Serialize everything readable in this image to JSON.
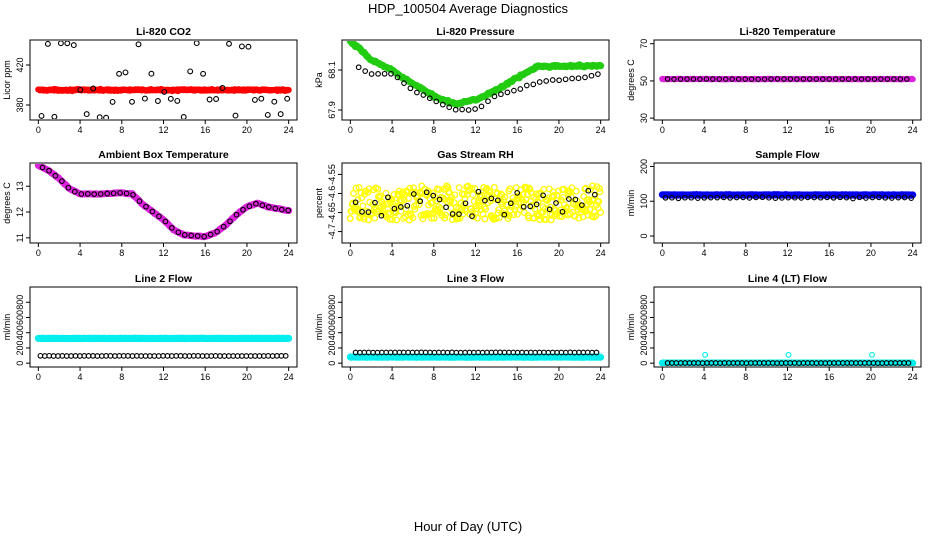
{
  "figure": {
    "title": "HDP_100504  Average Diagnostics",
    "xlabel": "Hour of Day (UTC)"
  },
  "chart_data": [
    {
      "id": "co2",
      "type": "scatter",
      "title": "Li-820 CO2",
      "ylabel": "Licor ppm",
      "xlim": [
        -0.8,
        24.8
      ],
      "xticks": [
        0,
        4,
        8,
        12,
        16,
        20,
        24
      ],
      "ylim": [
        365,
        445
      ],
      "yticks": [
        380,
        420
      ],
      "series": [
        {
          "name": "filled",
          "color": "#ff0000",
          "pattern": "const",
          "x_start": 0.0,
          "x_end": 24.0,
          "step": 0.06,
          "y": 395,
          "noise": 1.2,
          "size": 2.8
        },
        {
          "name": "open",
          "color": "#000000",
          "pattern": "scatter_levels",
          "x_start": 0.3,
          "x_end": 24.0,
          "step": 0.62,
          "levels": [
            369,
            385,
            395,
            412,
            440
          ],
          "weights": [
            3,
            4,
            2,
            1,
            2
          ],
          "size": 2.4,
          "open": true
        }
      ]
    },
    {
      "id": "pressure",
      "type": "scatter",
      "title": "Li-820 Pressure",
      "ylabel": "kPa",
      "xlim": [
        -0.8,
        24.8
      ],
      "xticks": [
        0,
        4,
        8,
        12,
        16,
        20,
        24
      ],
      "ylim": [
        67.85,
        68.25
      ],
      "yticks": [
        67.9,
        68.1
      ],
      "series": [
        {
          "name": "filled",
          "color": "#22cc11",
          "pattern": "curve",
          "x_start": 0.0,
          "x_end": 24.0,
          "step": 0.12,
          "noise": 0.008,
          "size": 3.2,
          "knots": [
            [
              0,
              68.24
            ],
            [
              1,
              68.2
            ],
            [
              2,
              68.15
            ],
            [
              4,
              68.1
            ],
            [
              6,
              68.03
            ],
            [
              8,
              67.97
            ],
            [
              10,
              67.93
            ],
            [
              12,
              67.95
            ],
            [
              14,
              68.0
            ],
            [
              16,
              68.06
            ],
            [
              18,
              68.12
            ],
            [
              20,
              68.12
            ],
            [
              22,
              68.12
            ],
            [
              24,
              68.12
            ]
          ]
        },
        {
          "name": "open",
          "color": "#000000",
          "pattern": "curve",
          "x_start": 0.8,
          "x_end": 24.0,
          "step": 0.62,
          "noise": 0.006,
          "size": 2.3,
          "open": true,
          "knots": [
            [
              0,
              68.13
            ],
            [
              2,
              68.08
            ],
            [
              4,
              68.08
            ],
            [
              6,
              68.0
            ],
            [
              8,
              67.95
            ],
            [
              10,
              67.9
            ],
            [
              12,
              67.9
            ],
            [
              14,
              67.97
            ],
            [
              16,
              68.0
            ],
            [
              18,
              68.04
            ],
            [
              20,
              68.05
            ],
            [
              22,
              68.06
            ],
            [
              24,
              68.08
            ]
          ]
        }
      ]
    },
    {
      "id": "temperature",
      "type": "scatter",
      "title": "Li-820 Temperature",
      "ylabel": "degrees C",
      "xlim": [
        -0.8,
        24.8
      ],
      "xticks": [
        0,
        4,
        8,
        12,
        16,
        20,
        24
      ],
      "ylim": [
        29,
        72
      ],
      "yticks": [
        30,
        50,
        70
      ],
      "series": [
        {
          "name": "filled",
          "color": "#dd22dd",
          "pattern": "const",
          "x_start": 0.0,
          "x_end": 24.0,
          "step": 0.08,
          "y": 51,
          "noise": 0.15,
          "size": 2.8
        },
        {
          "name": "open",
          "color": "#000000",
          "pattern": "const",
          "x_start": 0.5,
          "x_end": 24.0,
          "step": 0.62,
          "y": 51,
          "noise": 0.1,
          "size": 2.2,
          "open": true
        }
      ]
    },
    {
      "id": "ambient",
      "type": "scatter",
      "title": "Ambient Box Temperature",
      "ylabel": "degrees C",
      "xlim": [
        -0.8,
        24.8
      ],
      "xticks": [
        0,
        4,
        8,
        12,
        16,
        20,
        24
      ],
      "ylim": [
        10.8,
        13.9
      ],
      "yticks": [
        11.0,
        12.0,
        13.0
      ],
      "series": [
        {
          "name": "filled",
          "color": "#dd22dd",
          "pattern": "curve",
          "x_start": 0.0,
          "x_end": 24.0,
          "step": 0.12,
          "noise": 0.02,
          "size": 3.2,
          "knots": [
            [
              0,
              13.8
            ],
            [
              1,
              13.6
            ],
            [
              2,
              13.3
            ],
            [
              3,
              12.9
            ],
            [
              4,
              12.7
            ],
            [
              6,
              12.7
            ],
            [
              8,
              12.75
            ],
            [
              9,
              12.7
            ],
            [
              10,
              12.3
            ],
            [
              12,
              11.7
            ],
            [
              13,
              11.3
            ],
            [
              14,
              11.1
            ],
            [
              16,
              11.05
            ],
            [
              17,
              11.2
            ],
            [
              18,
              11.5
            ],
            [
              19,
              11.9
            ],
            [
              20,
              12.2
            ],
            [
              21,
              12.35
            ],
            [
              22,
              12.2
            ],
            [
              24,
              12.05
            ]
          ]
        },
        {
          "name": "open",
          "color": "#000000",
          "pattern": "curve",
          "x_start": 0.4,
          "x_end": 24.0,
          "step": 0.62,
          "noise": 0.02,
          "size": 2.3,
          "open": true,
          "knots": [
            [
              0,
              13.8
            ],
            [
              1,
              13.6
            ],
            [
              2,
              13.3
            ],
            [
              3,
              12.9
            ],
            [
              4,
              12.7
            ],
            [
              6,
              12.7
            ],
            [
              8,
              12.75
            ],
            [
              9,
              12.7
            ],
            [
              10,
              12.3
            ],
            [
              12,
              11.7
            ],
            [
              13,
              11.3
            ],
            [
              14,
              11.1
            ],
            [
              16,
              11.05
            ],
            [
              17,
              11.2
            ],
            [
              18,
              11.5
            ],
            [
              19,
              11.9
            ],
            [
              20,
              12.2
            ],
            [
              21,
              12.35
            ],
            [
              22,
              12.2
            ],
            [
              24,
              12.05
            ]
          ]
        }
      ]
    },
    {
      "id": "rh",
      "type": "scatter",
      "title": "Gas Stream RH",
      "ylabel": "percent",
      "xlim": [
        -0.8,
        24.8
      ],
      "xticks": [
        0,
        4,
        8,
        12,
        16,
        20,
        24
      ],
      "ylim": [
        -4.73,
        -4.52
      ],
      "yticks": [
        -4.55,
        -4.6,
        -4.65,
        -4.7
      ],
      "series": [
        {
          "name": "filled",
          "color": "#ffff00",
          "edge": "#d8d800",
          "pattern": "noise",
          "x_start": 0.0,
          "x_end": 24.0,
          "step": 0.06,
          "y": -4.625,
          "noise": 0.045,
          "size": 2.8,
          "open": true
        },
        {
          "name": "open",
          "color": "#000000",
          "pattern": "noise",
          "x_start": 0.5,
          "x_end": 24.0,
          "step": 0.62,
          "y": -4.625,
          "noise": 0.035,
          "size": 2.3,
          "open": true
        }
      ]
    },
    {
      "id": "sample",
      "type": "scatter",
      "title": "Sample Flow",
      "ylabel": "ml/min",
      "xlim": [
        -0.8,
        24.8
      ],
      "xticks": [
        0,
        4,
        8,
        12,
        16,
        20,
        24
      ],
      "ylim": [
        -20,
        210
      ],
      "yticks": [
        0,
        100,
        200
      ],
      "series": [
        {
          "name": "filled",
          "color": "#0000ee",
          "pattern": "const",
          "x_start": 0.0,
          "x_end": 24.0,
          "step": 0.06,
          "y": 118,
          "noise": 1.5,
          "size": 3.2
        },
        {
          "name": "open",
          "color": "#000000",
          "pattern": "const",
          "x_start": 0.3,
          "x_end": 24.0,
          "step": 0.62,
          "y": 110,
          "noise": 2.5,
          "size": 2.3,
          "open": true
        }
      ]
    },
    {
      "id": "line2",
      "type": "scatter",
      "title": "Line 2 Flow",
      "ylabel": "ml/min",
      "xlim": [
        -0.8,
        24.8
      ],
      "xticks": [
        0,
        4,
        8,
        12,
        16,
        20,
        24
      ],
      "ylim": [
        -50,
        1000
      ],
      "yticks": [
        0,
        200,
        400,
        600,
        800
      ],
      "series": [
        {
          "name": "filled",
          "color": "#00eeee",
          "pattern": "const",
          "x_start": 0.0,
          "x_end": 24.0,
          "step": 0.06,
          "y": 325,
          "noise": 4,
          "size": 3.2
        },
        {
          "name": "open",
          "color": "#000000",
          "pattern": "const",
          "x_start": 0.2,
          "x_end": 24.0,
          "step": 0.42,
          "y": 95,
          "noise": 2,
          "size": 2.3,
          "open": true
        }
      ]
    },
    {
      "id": "line3",
      "type": "scatter",
      "title": "Line 3 Flow",
      "ylabel": "ml/min",
      "xlim": [
        -0.8,
        24.8
      ],
      "xticks": [
        0,
        4,
        8,
        12,
        16,
        20,
        24
      ],
      "ylim": [
        -50,
        1000
      ],
      "yticks": [
        0,
        200,
        400,
        600,
        800
      ],
      "series": [
        {
          "name": "filled",
          "color": "#00eeee",
          "pattern": "const",
          "x_start": 0.0,
          "x_end": 24.0,
          "step": 0.06,
          "y": 80,
          "noise": 4,
          "size": 3.2
        },
        {
          "name": "open",
          "color": "#000000",
          "pattern": "const",
          "x_start": 0.5,
          "x_end": 24.0,
          "step": 0.42,
          "y": 140,
          "noise": 2,
          "size": 2.3,
          "open": true
        }
      ]
    },
    {
      "id": "line4",
      "type": "scatter",
      "title": "Line 4 (LT) Flow",
      "ylabel": "ml/min",
      "xlim": [
        -0.8,
        24.8
      ],
      "xticks": [
        0,
        4,
        8,
        12,
        16,
        20,
        24
      ],
      "ylim": [
        -50,
        1000
      ],
      "yticks": [
        0,
        200,
        400,
        600,
        800
      ],
      "series": [
        {
          "name": "filled",
          "color": "#00eeee",
          "pattern": "const",
          "x_start": 0.0,
          "x_end": 24.0,
          "step": 0.06,
          "y": 2,
          "noise": 2,
          "size": 3.2
        },
        {
          "name": "open",
          "color": "#000000",
          "pattern": "const",
          "x_start": 0.5,
          "x_end": 24.0,
          "step": 0.42,
          "y": 2,
          "noise": 1,
          "size": 2.3,
          "open": true
        },
        {
          "name": "spikes",
          "color": "#00eeee",
          "pattern": "points",
          "points": [
            [
              4.1,
              110
            ],
            [
              12.1,
              110
            ],
            [
              20.1,
              110
            ]
          ],
          "size": 2.4,
          "open": true
        }
      ]
    }
  ]
}
